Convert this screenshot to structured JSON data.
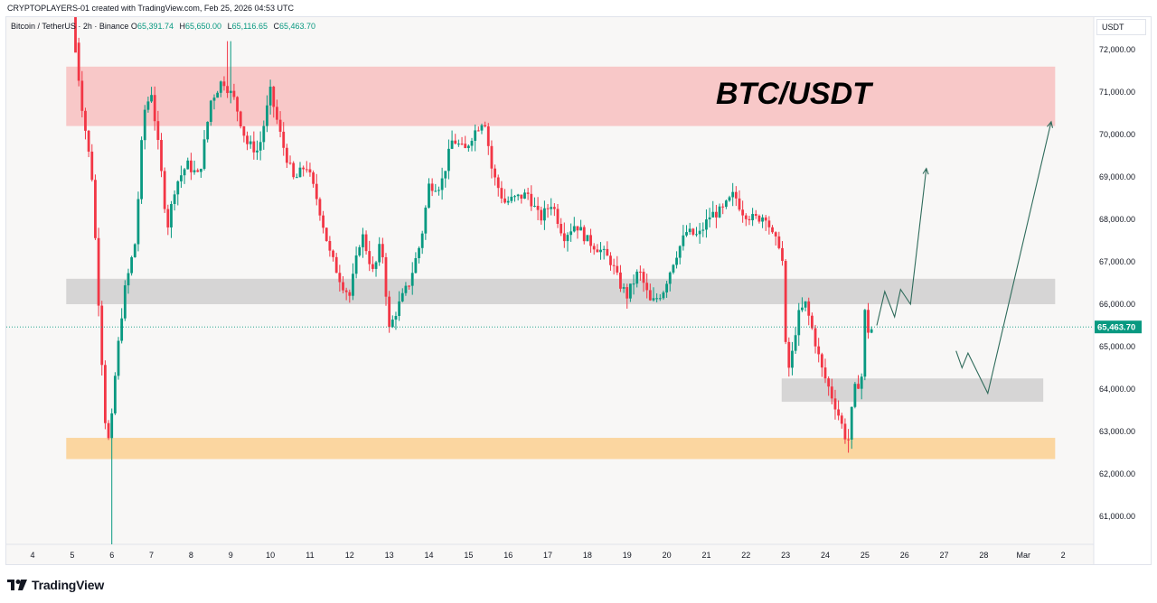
{
  "header": {
    "attribution": "CRYPTOPLAYERS-01 created with TradingView.com, Feb 25, 2026 04:53 UTC"
  },
  "legend": {
    "symbol": "Bitcoin / TetherUS · 2h · Binance",
    "o_label": "O",
    "o_value": "65,391.74",
    "h_label": "H",
    "h_value": "65,650.00",
    "l_label": "L",
    "l_value": "65,116.65",
    "c_label": "C",
    "c_value": "65,463.70"
  },
  "currency": "USDT",
  "footer": {
    "brand": "TradingView",
    "logo_icon": "tradingview-logo-icon"
  },
  "colors": {
    "up": "#089981",
    "down": "#f23645",
    "background": "#f8f7f6",
    "resistance_zone": "#f8c8c8",
    "mid_zone": "#d6d5d5",
    "support_zone": "#fbd6a0",
    "projection": "#2f6b5b",
    "last_price_label": "#089981"
  },
  "chart_data": {
    "type": "candlestick",
    "title": "BTC/USDT",
    "xlabel": "",
    "ylabel": "",
    "ylim": [
      60300,
      73000
    ],
    "grid": false,
    "y_ticks": [
      "61,000.00",
      "62,000.00",
      "63,000.00",
      "64,000.00",
      "65,000.00",
      "66,000.00",
      "67,000.00",
      "68,000.00",
      "69,000.00",
      "70,000.00",
      "71,000.00",
      "72,000.00"
    ],
    "y_tick_values": [
      61000,
      62000,
      63000,
      64000,
      65000,
      66000,
      67000,
      68000,
      69000,
      70000,
      71000,
      72000
    ],
    "x_tick_labels": [
      "4",
      "5",
      "6",
      "7",
      "8",
      "9",
      "10",
      "11",
      "12",
      "13",
      "14",
      "15",
      "16",
      "17",
      "18",
      "19",
      "20",
      "21",
      "22",
      "23",
      "24",
      "25",
      "26",
      "27",
      "28",
      "Mar",
      "2"
    ],
    "x_tick_days": [
      4,
      5,
      6,
      7,
      8,
      9,
      10,
      11,
      12,
      13,
      14,
      15,
      16,
      17,
      18,
      19,
      20,
      21,
      22,
      23,
      24,
      25,
      26,
      27,
      28,
      29,
      30
    ],
    "last_price": 65463.7,
    "last_price_label": "65,463.70",
    "price_path": [
      [
        5.0,
        73000
      ],
      [
        5.2,
        71000
      ],
      [
        5.5,
        69000
      ],
      [
        5.7,
        65500
      ],
      [
        5.85,
        63000
      ],
      [
        5.95,
        62700
      ],
      [
        6.1,
        64500
      ],
      [
        6.3,
        66200
      ],
      [
        6.6,
        67500
      ],
      [
        6.8,
        70500
      ],
      [
        7.0,
        71000
      ],
      [
        7.2,
        69500
      ],
      [
        7.4,
        67800
      ],
      [
        7.6,
        68800
      ],
      [
        7.9,
        69300
      ],
      [
        8.2,
        69000
      ],
      [
        8.5,
        70800
      ],
      [
        8.8,
        71300
      ],
      [
        9.1,
        70800
      ],
      [
        9.4,
        69800
      ],
      [
        9.7,
        69600
      ],
      [
        10.0,
        71000
      ],
      [
        10.3,
        69800
      ],
      [
        10.6,
        68900
      ],
      [
        10.9,
        69300
      ],
      [
        11.2,
        68400
      ],
      [
        11.5,
        67200
      ],
      [
        11.8,
        66500
      ],
      [
        12.0,
        66200
      ],
      [
        12.3,
        67700
      ],
      [
        12.6,
        66700
      ],
      [
        12.8,
        67500
      ],
      [
        13.0,
        65400
      ],
      [
        13.2,
        65900
      ],
      [
        13.5,
        66500
      ],
      [
        13.8,
        67500
      ],
      [
        14.0,
        68800
      ],
      [
        14.3,
        68800
      ],
      [
        14.6,
        69900
      ],
      [
        14.9,
        69600
      ],
      [
        15.1,
        70000
      ],
      [
        15.4,
        70400
      ],
      [
        15.6,
        69100
      ],
      [
        15.9,
        68400
      ],
      [
        16.2,
        68500
      ],
      [
        16.5,
        68600
      ],
      [
        16.8,
        68000
      ],
      [
        17.1,
        68400
      ],
      [
        17.4,
        67600
      ],
      [
        17.7,
        67900
      ],
      [
        18.0,
        67500
      ],
      [
        18.3,
        67300
      ],
      [
        18.6,
        67000
      ],
      [
        18.8,
        66500
      ],
      [
        19.0,
        66200
      ],
      [
        19.3,
        66800
      ],
      [
        19.6,
        66000
      ],
      [
        19.9,
        66300
      ],
      [
        20.2,
        67100
      ],
      [
        20.5,
        67700
      ],
      [
        20.8,
        67600
      ],
      [
        21.1,
        68100
      ],
      [
        21.4,
        68200
      ],
      [
        21.7,
        68600
      ],
      [
        21.9,
        68200
      ],
      [
        22.2,
        68000
      ],
      [
        22.5,
        68100
      ],
      [
        22.7,
        67500
      ],
      [
        22.9,
        67400
      ],
      [
        23.0,
        65000
      ],
      [
        23.1,
        64400
      ],
      [
        23.3,
        65700
      ],
      [
        23.5,
        66000
      ],
      [
        23.7,
        65300
      ],
      [
        23.9,
        64500
      ],
      [
        24.1,
        64000
      ],
      [
        24.3,
        63500
      ],
      [
        24.5,
        62900
      ],
      [
        24.6,
        62800
      ],
      [
        24.7,
        63800
      ],
      [
        24.8,
        64200
      ],
      [
        24.9,
        64000
      ],
      [
        25.0,
        65800
      ],
      [
        25.1,
        65300
      ],
      [
        25.2,
        65463
      ]
    ],
    "zones": [
      {
        "name": "resistance",
        "from_day": 4.85,
        "to_day": 29.8,
        "low": 70200,
        "high": 71600
      },
      {
        "name": "mid-range",
        "from_day": 4.85,
        "to_day": 29.8,
        "low": 66000,
        "high": 66600
      },
      {
        "name": "local-support",
        "from_day": 22.9,
        "to_day": 29.5,
        "low": 63700,
        "high": 64250
      },
      {
        "name": "major-support",
        "from_day": 4.85,
        "to_day": 29.8,
        "low": 62350,
        "high": 62850
      }
    ],
    "projections": [
      {
        "name": "path-a",
        "points": [
          [
            25.3,
            65500
          ],
          [
            25.5,
            66300
          ],
          [
            25.75,
            65700
          ],
          [
            25.9,
            66350
          ],
          [
            26.15,
            66000
          ],
          [
            26.55,
            69200
          ]
        ]
      },
      {
        "name": "path-b",
        "points": [
          [
            27.3,
            64900
          ],
          [
            27.45,
            64500
          ],
          [
            27.6,
            64850
          ],
          [
            28.1,
            63900
          ],
          [
            29.7,
            70300
          ]
        ]
      }
    ]
  }
}
